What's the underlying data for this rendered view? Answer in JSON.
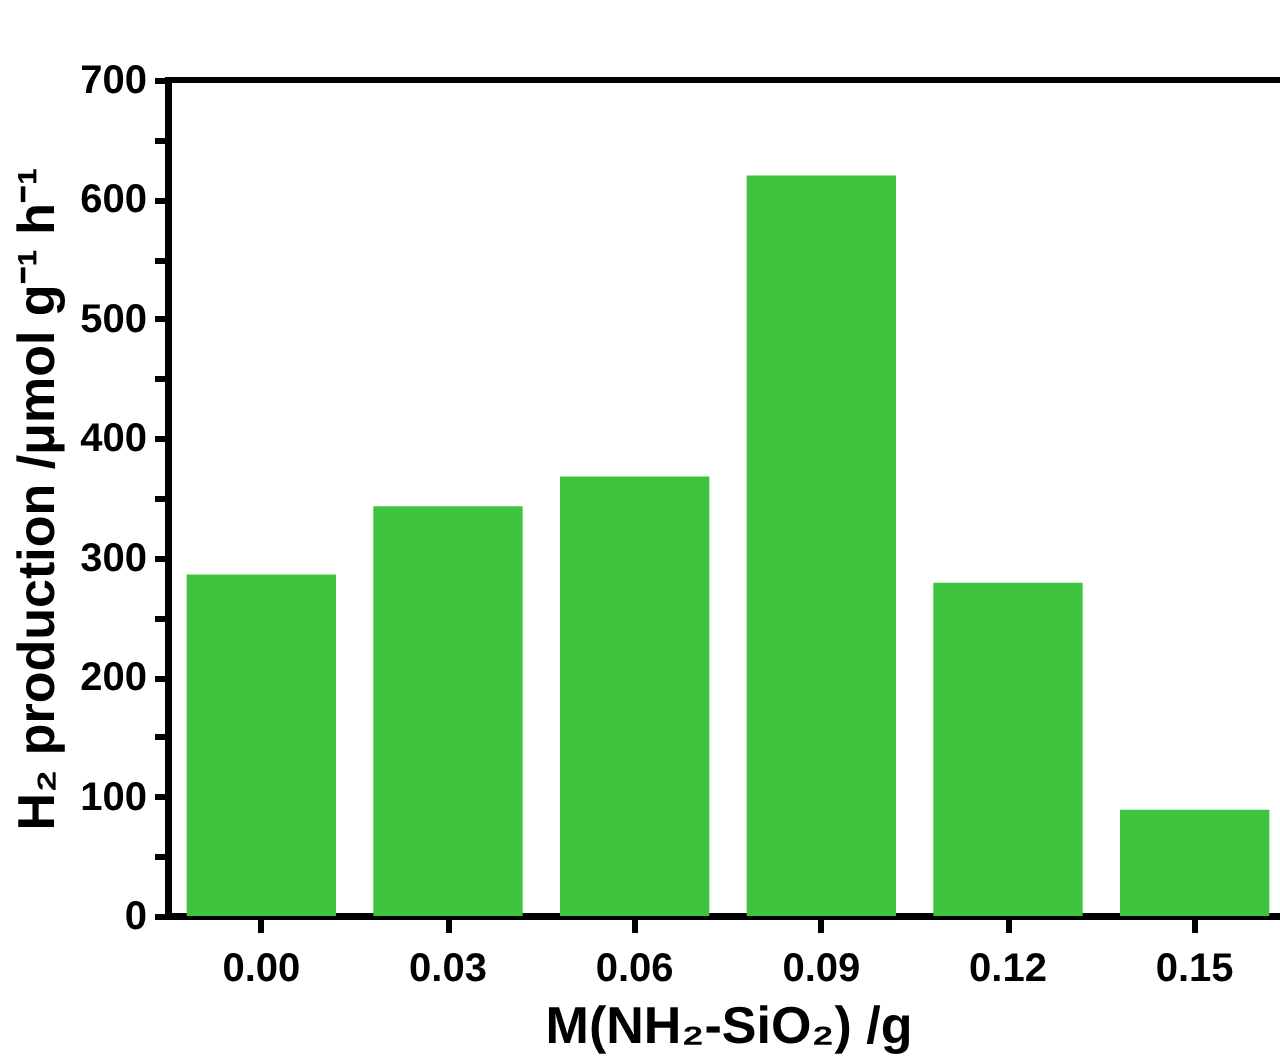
{
  "chart_data": {
    "type": "bar",
    "xlabel": "M(NH₂-SiO₂) /g",
    "ylabel": "H₂ production /μmol g⁻¹ h⁻¹",
    "categories": [
      "0.00",
      "0.03",
      "0.06",
      "0.09",
      "0.12",
      "0.15"
    ],
    "values": [
      286,
      343,
      368,
      620,
      279,
      89
    ],
    "color": "#3ec43e",
    "ylim": [
      0,
      700
    ],
    "yticks": [
      0,
      {
        "value": 50,
        "label": null
      },
      100,
      {
        "value": 150,
        "label": null
      },
      200,
      {
        "value": 250,
        "label": null
      },
      300,
      {
        "value": 350,
        "label": null
      },
      400,
      {
        "value": 450,
        "label": null
      },
      500,
      {
        "value": 550,
        "label": null
      },
      600,
      {
        "value": 650,
        "label": null
      },
      700
    ],
    "grid": false
  }
}
